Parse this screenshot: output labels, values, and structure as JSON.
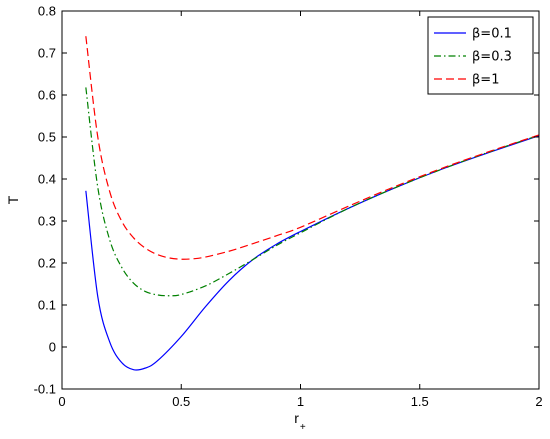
{
  "chart_data": {
    "type": "line",
    "title": "",
    "xlabel": "r",
    "xlabel_subscript": "+",
    "ylabel": "T",
    "xlim": [
      0,
      2
    ],
    "ylim": [
      -0.1,
      0.8
    ],
    "x_ticks": [
      "0",
      "0.5",
      "1",
      "1.5",
      "2"
    ],
    "y_ticks": [
      "-0.1",
      "0",
      "0.1",
      "0.2",
      "0.3",
      "0.4",
      "0.5",
      "0.6",
      "0.7",
      "0.8"
    ],
    "grid": false,
    "legend_position": "top-right",
    "series": [
      {
        "name": "β=0.1",
        "color": "#0000ff",
        "style": "solid",
        "x": [
          0.1,
          0.15,
          0.2,
          0.25,
          0.3,
          0.35,
          0.4,
          0.5,
          0.6,
          0.7,
          0.8,
          0.9,
          1.0,
          1.2,
          1.4,
          1.6,
          1.8,
          2.0
        ],
        "y": [
          0.372,
          0.12,
          0.012,
          -0.037,
          -0.054,
          -0.05,
          -0.033,
          0.025,
          0.095,
          0.158,
          0.208,
          0.245,
          0.275,
          0.33,
          0.38,
          0.425,
          0.465,
          0.503
        ]
      },
      {
        "name": "β=0.3",
        "color": "#008000",
        "style": "dashdot",
        "x": [
          0.1,
          0.15,
          0.2,
          0.25,
          0.3,
          0.35,
          0.4,
          0.45,
          0.5,
          0.6,
          0.7,
          0.8,
          0.9,
          1.0,
          1.2,
          1.4,
          1.6,
          1.8,
          2.0
        ],
        "y": [
          0.618,
          0.38,
          0.255,
          0.19,
          0.152,
          0.132,
          0.124,
          0.122,
          0.125,
          0.145,
          0.175,
          0.208,
          0.242,
          0.272,
          0.33,
          0.38,
          0.425,
          0.466,
          0.504
        ]
      },
      {
        "name": "β=1",
        "color": "#ff0000",
        "style": "dashed",
        "x": [
          0.1,
          0.15,
          0.2,
          0.25,
          0.3,
          0.35,
          0.4,
          0.45,
          0.5,
          0.55,
          0.6,
          0.7,
          0.8,
          0.9,
          1.0,
          1.2,
          1.4,
          1.6,
          1.8,
          2.0
        ],
        "y": [
          0.74,
          0.5,
          0.37,
          0.3,
          0.26,
          0.235,
          0.22,
          0.212,
          0.209,
          0.21,
          0.214,
          0.228,
          0.246,
          0.265,
          0.285,
          0.335,
          0.383,
          0.427,
          0.467,
          0.505
        ]
      }
    ]
  }
}
